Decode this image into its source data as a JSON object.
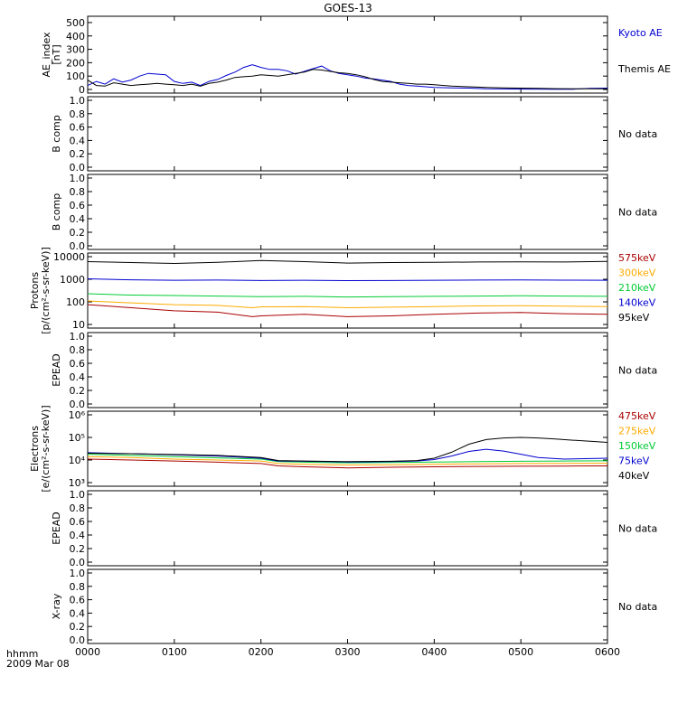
{
  "title": "GOES-13",
  "footer": {
    "left_top": "hhmm",
    "left_bottom": "2009 Mar 08"
  },
  "colors": {
    "black": "#000000",
    "blue": "#0000d0",
    "green": "#00cc33",
    "orange": "#ffaa00",
    "red": "#aa0000"
  },
  "chart_data": [
    {
      "type": "line",
      "panel": "ae_index",
      "ylabel": "AE_index\n[nT]",
      "yticks": [
        "500",
        "400",
        "300",
        "200",
        "100",
        "0"
      ],
      "ylim": [
        0,
        520
      ],
      "xlim": [
        0,
        6
      ],
      "x_unit": "hours",
      "series": [
        {
          "name": "Kyoto AE",
          "color": "#0000d0",
          "x": [
            0,
            0.1,
            0.2,
            0.3,
            0.4,
            0.5,
            0.6,
            0.7,
            0.8,
            0.9,
            1.0,
            1.1,
            1.2,
            1.3,
            1.4,
            1.5,
            1.6,
            1.7,
            1.8,
            1.9,
            2.0,
            2.1,
            2.2,
            2.3,
            2.4,
            2.5,
            2.6,
            2.7,
            2.8,
            2.9,
            3.0,
            3.1,
            3.2,
            3.3,
            3.4,
            3.5,
            3.6,
            3.7,
            3.8,
            3.9,
            4.0,
            4.2,
            4.4,
            4.6,
            4.8,
            5.0,
            5.2,
            5.4,
            5.6,
            5.8,
            6.0
          ],
          "values": [
            30,
            60,
            40,
            80,
            55,
            70,
            100,
            120,
            115,
            110,
            60,
            45,
            55,
            30,
            60,
            75,
            105,
            130,
            165,
            185,
            165,
            150,
            150,
            140,
            115,
            135,
            155,
            175,
            140,
            120,
            110,
            100,
            85,
            80,
            70,
            60,
            40,
            30,
            25,
            20,
            15,
            12,
            10,
            5,
            4,
            3,
            3,
            2,
            2,
            8,
            10
          ]
        },
        {
          "name": "Themis AE",
          "color": "#000000",
          "x": [
            0,
            0.1,
            0.2,
            0.3,
            0.4,
            0.5,
            0.6,
            0.7,
            0.8,
            0.9,
            1.0,
            1.1,
            1.2,
            1.3,
            1.4,
            1.5,
            1.6,
            1.7,
            1.8,
            1.9,
            2.0,
            2.1,
            2.2,
            2.3,
            2.4,
            2.5,
            2.6,
            2.7,
            2.8,
            2.9,
            3.0,
            3.1,
            3.2,
            3.3,
            3.4,
            3.5,
            3.6,
            3.7,
            3.8,
            3.9,
            4.0,
            4.2,
            4.4,
            4.6,
            4.8,
            5.0,
            5.2,
            5.4,
            5.6,
            5.8,
            6.0
          ],
          "values": [
            70,
            30,
            25,
            50,
            40,
            30,
            35,
            40,
            45,
            40,
            35,
            30,
            40,
            25,
            45,
            55,
            70,
            90,
            95,
            100,
            110,
            105,
            100,
            110,
            120,
            130,
            150,
            145,
            135,
            125,
            120,
            110,
            95,
            75,
            60,
            55,
            50,
            45,
            40,
            40,
            35,
            25,
            20,
            15,
            12,
            10,
            8,
            6,
            5,
            5,
            5
          ]
        }
      ]
    },
    {
      "type": "line",
      "panel": "b_comp_1",
      "ylabel": "B comp",
      "yticks": [
        "1.0",
        "0.8",
        "0.6",
        "0.4",
        "0.2",
        "0.0"
      ],
      "ylim": [
        0,
        1.0
      ],
      "status": "No data"
    },
    {
      "type": "line",
      "panel": "b_comp_2",
      "ylabel": "B comp",
      "yticks": [
        "1.0",
        "0.8",
        "0.6",
        "0.4",
        "0.2",
        "0.0"
      ],
      "ylim": [
        0,
        1.0
      ],
      "status": "No data"
    },
    {
      "type": "line",
      "panel": "protons",
      "ylabel": "Protons",
      "ylabel2": "[p/(cm²-s-sr-keV)]",
      "yscale": "log",
      "yticks": [
        "10000",
        "1000",
        "100",
        "10"
      ],
      "ylim": [
        10,
        10000
      ],
      "xlim": [
        0,
        6
      ],
      "series": [
        {
          "name": "575keV",
          "color": "#aa0000",
          "x": [
            0,
            0.5,
            1.0,
            1.5,
            1.9,
            2.0,
            2.5,
            3.0,
            3.5,
            4.0,
            4.5,
            5.0,
            5.5,
            6.0
          ],
          "values": [
            75,
            55,
            40,
            35,
            22,
            24,
            28,
            22,
            24,
            28,
            32,
            34,
            30,
            28
          ]
        },
        {
          "name": "300keV",
          "color": "#ffaa00",
          "x": [
            0,
            0.5,
            1.0,
            1.5,
            1.9,
            2.0,
            2.5,
            3.0,
            3.5,
            4.0,
            4.5,
            5.0,
            5.5,
            6.0
          ],
          "values": [
            110,
            90,
            75,
            70,
            55,
            60,
            62,
            55,
            58,
            62,
            66,
            68,
            64,
            62
          ]
        },
        {
          "name": "210keV",
          "color": "#00cc33",
          "x": [
            0,
            0.5,
            1.0,
            1.5,
            2.0,
            2.5,
            3.0,
            3.5,
            4.0,
            4.5,
            5.0,
            5.5,
            6.0
          ],
          "values": [
            230,
            200,
            190,
            180,
            170,
            175,
            165,
            170,
            175,
            180,
            185,
            180,
            175
          ]
        },
        {
          "name": "140keV",
          "color": "#0000d0",
          "x": [
            0,
            0.5,
            1.0,
            1.5,
            2.0,
            2.5,
            3.0,
            3.5,
            4.0,
            4.5,
            5.0,
            5.5,
            6.0
          ],
          "values": [
            1050,
            950,
            900,
            920,
            880,
            900,
            870,
            880,
            900,
            920,
            930,
            910,
            900
          ]
        },
        {
          "name": "95keV",
          "color": "#000000",
          "x": [
            0,
            0.5,
            1.0,
            1.5,
            2.0,
            2.5,
            3.0,
            3.5,
            4.0,
            4.5,
            5.0,
            5.5,
            6.0
          ],
          "values": [
            6000,
            5500,
            5000,
            5600,
            6800,
            6000,
            5200,
            5500,
            5600,
            5800,
            5900,
            5800,
            6200
          ]
        }
      ]
    },
    {
      "type": "line",
      "panel": "epead_1",
      "ylabel": "EPEAD",
      "yticks": [
        "1.0",
        "0.8",
        "0.6",
        "0.4",
        "0.2",
        "0.0"
      ],
      "ylim": [
        0,
        1.0
      ],
      "status": "No data"
    },
    {
      "type": "line",
      "panel": "electrons",
      "ylabel": "Electrons",
      "ylabel2": "[e/(cm²-s-sr-keV)]",
      "yscale": "log",
      "yticks": [
        "10⁶",
        "10⁵",
        "10⁴",
        "10³"
      ],
      "ylim": [
        1000,
        1000000
      ],
      "xlim": [
        0,
        6
      ],
      "series": [
        {
          "name": "475keV",
          "color": "#aa0000",
          "x": [
            0,
            0.5,
            1.0,
            1.5,
            2.0,
            2.2,
            2.5,
            3.0,
            3.5,
            4.0,
            4.5,
            5.0,
            5.5,
            6.0
          ],
          "values": [
            11000,
            10000,
            9000,
            8000,
            7000,
            5500,
            5000,
            4500,
            4800,
            5000,
            5200,
            5300,
            5400,
            5500
          ]
        },
        {
          "name": "275keV",
          "color": "#ffaa00",
          "x": [
            0,
            0.5,
            1.0,
            1.5,
            2.0,
            2.2,
            2.5,
            3.0,
            3.5,
            4.0,
            4.5,
            5.0,
            5.5,
            6.0
          ],
          "values": [
            14000,
            13000,
            11000,
            10000,
            9000,
            7000,
            6500,
            6000,
            6200,
            6500,
            6800,
            7000,
            7100,
            7200
          ]
        },
        {
          "name": "150keV",
          "color": "#00cc33",
          "x": [
            0,
            0.5,
            1.0,
            1.5,
            2.0,
            2.2,
            2.5,
            3.0,
            3.5,
            4.0,
            4.5,
            5.0,
            5.5,
            6.0
          ],
          "values": [
            18000,
            16000,
            14000,
            12500,
            11000,
            8500,
            8000,
            7500,
            7800,
            8200,
            8500,
            8800,
            9000,
            9200
          ]
        },
        {
          "name": "75keV",
          "color": "#0000d0",
          "x": [
            0,
            0.5,
            1.0,
            1.5,
            2.0,
            2.2,
            2.5,
            3.0,
            3.5,
            3.8,
            4.0,
            4.2,
            4.4,
            4.6,
            4.8,
            5.0,
            5.2,
            5.5,
            6.0
          ],
          "values": [
            21000,
            19000,
            17000,
            15000,
            12000,
            9000,
            8800,
            8200,
            8500,
            9000,
            10500,
            15000,
            24000,
            30000,
            25000,
            18000,
            13000,
            11000,
            12000
          ]
        },
        {
          "name": "40keV",
          "color": "#000000",
          "x": [
            0,
            0.5,
            1.0,
            1.5,
            2.0,
            2.2,
            2.5,
            3.0,
            3.5,
            3.8,
            4.0,
            4.2,
            4.4,
            4.6,
            4.8,
            5.0,
            5.2,
            5.4,
            5.6,
            5.8,
            6.0
          ],
          "values": [
            20000,
            19000,
            17500,
            16000,
            13000,
            9500,
            9000,
            8500,
            8800,
            9500,
            12000,
            22000,
            50000,
            80000,
            95000,
            100000,
            95000,
            85000,
            75000,
            68000,
            60000
          ]
        }
      ]
    },
    {
      "type": "line",
      "panel": "epead_2",
      "ylabel": "EPEAD",
      "yticks": [
        "1.0",
        "0.8",
        "0.6",
        "0.4",
        "0.2",
        "0.0"
      ],
      "ylim": [
        0,
        1.0
      ],
      "status": "No data"
    },
    {
      "type": "line",
      "panel": "xray",
      "ylabel": "X-ray",
      "yticks": [
        "1.0",
        "0.8",
        "0.6",
        "0.4",
        "0.2",
        "0.0"
      ],
      "ylim": [
        0,
        1.0
      ],
      "status": "No data"
    }
  ],
  "x_ticks": [
    {
      "label": "0000",
      "value": 0
    },
    {
      "label": "0100",
      "value": 1
    },
    {
      "label": "0200",
      "value": 2
    },
    {
      "label": "0300",
      "value": 3
    },
    {
      "label": "0400",
      "value": 4
    },
    {
      "label": "0500",
      "value": 5
    },
    {
      "label": "0600",
      "value": 6
    }
  ]
}
